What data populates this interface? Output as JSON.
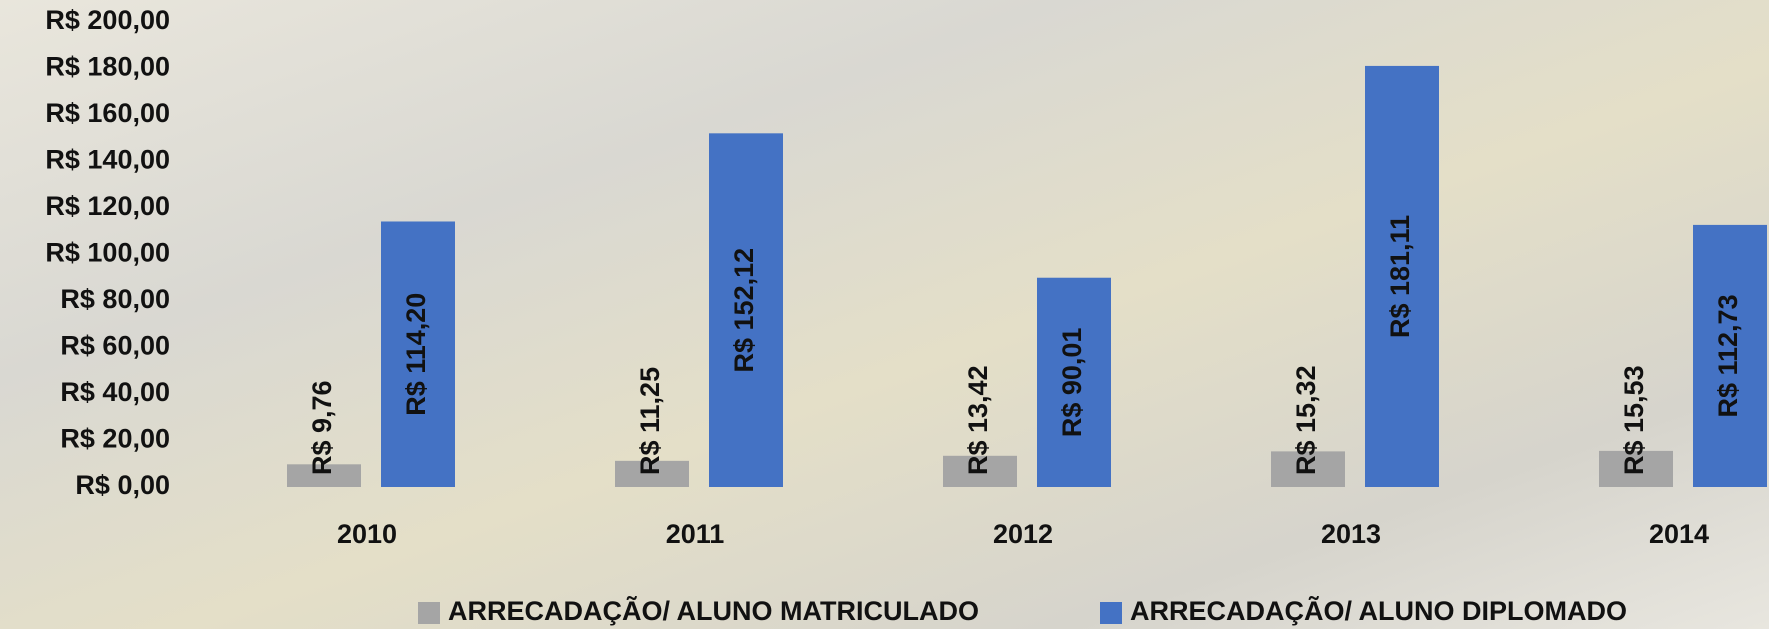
{
  "chart_data": {
    "type": "bar",
    "categories": [
      "2010",
      "2011",
      "2012",
      "2013",
      "2014"
    ],
    "series": [
      {
        "name": "ARRECADAÇÃO/ ALUNO MATRICULADO",
        "color": "#a5a5a5",
        "values": [
          9.76,
          11.25,
          13.42,
          15.32,
          15.53
        ],
        "value_labels": [
          "R$ 9,76",
          "R$ 11,25",
          "R$ 13,42",
          "R$ 15,32",
          "R$ 15,53"
        ]
      },
      {
        "name": "ARRECADAÇÃO/ ALUNO DIPLOMADO",
        "color": "#4472c4",
        "values": [
          114.2,
          152.12,
          90.01,
          181.11,
          112.73
        ],
        "value_labels": [
          "R$ 114,20",
          "R$ 152,12",
          "R$ 90,01",
          "R$ 181,11",
          "R$ 112,73"
        ]
      }
    ],
    "ylim": [
      0,
      200
    ],
    "yticks": [
      {
        "value": 0,
        "label": "R$ 0,00"
      },
      {
        "value": 20,
        "label": "R$ 20,00"
      },
      {
        "value": 40,
        "label": "R$ 40,00"
      },
      {
        "value": 60,
        "label": "R$ 60,00"
      },
      {
        "value": 80,
        "label": "R$ 80,00"
      },
      {
        "value": 100,
        "label": "R$ 100,00"
      },
      {
        "value": 120,
        "label": "R$ 120,00"
      },
      {
        "value": 140,
        "label": "R$ 140,00"
      },
      {
        "value": 160,
        "label": "R$ 160,00"
      },
      {
        "value": 180,
        "label": "R$ 180,00"
      },
      {
        "value": 200,
        "label": "R$ 200,00"
      }
    ],
    "grid": false,
    "legend": "bottom"
  }
}
